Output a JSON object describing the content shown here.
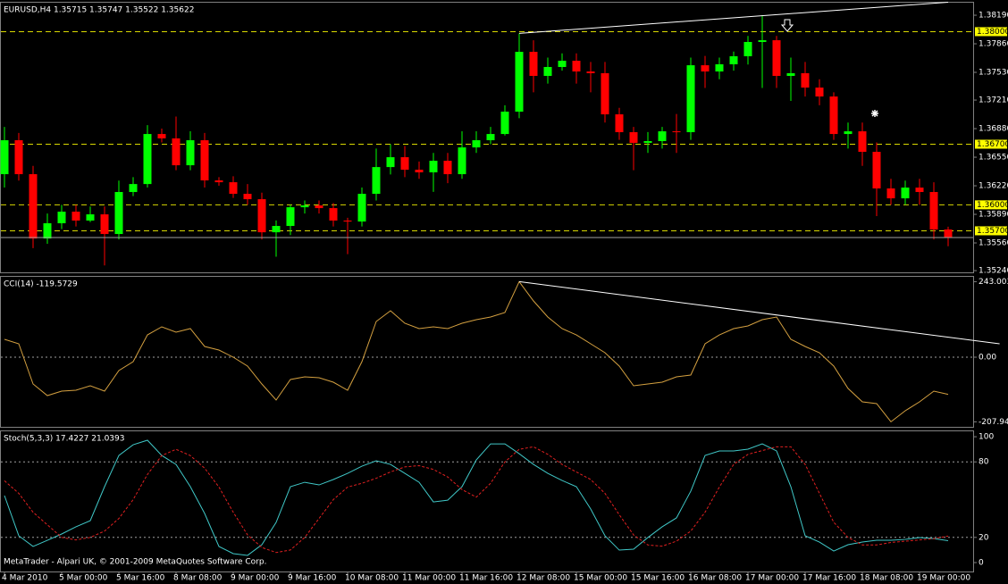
{
  "chart_data": [
    {
      "type": "candlestick",
      "title": "EURUSD,H4  1.35715 1.35747 1.35522 1.35622",
      "categories": [
        "4 Mar 2010",
        null,
        null,
        null,
        "5 Mar 00:00",
        null,
        null,
        null,
        "5 Mar 16:00",
        null,
        null,
        null,
        "8 Mar 08:00",
        null,
        null,
        null,
        "9 Mar 00:00",
        null,
        null,
        null,
        "9 Mar 16:00",
        null,
        null,
        null,
        "10 Mar 08:00",
        null,
        null,
        null,
        "11 Mar 00:00",
        null,
        null,
        null,
        "11 Mar 16:00",
        null,
        null,
        null,
        "12 Mar 08:00",
        null,
        null,
        null,
        "15 Mar 00:00",
        null,
        null,
        null,
        "15 Mar 16:00",
        null,
        null,
        null,
        "16 Mar 08:00",
        null,
        null,
        null,
        "17 Mar 00:00",
        null,
        null,
        null,
        "17 Mar 16:00",
        null,
        null,
        null,
        "18 Mar 08:00",
        null,
        null,
        null,
        "19 Mar 00:00",
        null,
        null
      ],
      "open": [
        1.36354,
        1.36746,
        1.36354,
        1.35611,
        1.35787,
        1.35921,
        1.35818,
        1.3589,
        1.35663,
        1.36148,
        1.3624,
        1.36818,
        1.36767,
        1.36457,
        1.36746,
        1.36282,
        1.36261,
        1.36127,
        1.36065,
        1.35683,
        1.35756,
        1.35972,
        1.35993,
        1.35962,
        1.35818,
        1.35807,
        1.36127,
        1.36436,
        1.3655,
        1.36405,
        1.36375,
        1.36509,
        1.36354,
        1.36663,
        1.36746,
        1.36818,
        1.37076,
        1.37767,
        1.37489,
        1.37592,
        1.37664,
        1.3754,
        1.3752,
        1.37045,
        1.36839,
        1.36715,
        1.36736,
        1.36849,
        1.36839,
        1.37612,
        1.3754,
        1.37623,
        1.37716,
        1.37881,
        1.37901,
        1.37489,
        1.3752,
        1.37354,
        1.37251,
        1.36818,
        1.36849,
        1.36612,
        1.36189,
        1.36075,
        1.36199,
        1.36148,
        1.35715
      ],
      "high": [
        1.369,
        1.3683,
        1.3645,
        1.359,
        1.36,
        1.36,
        1.3598,
        1.3598,
        1.3628,
        1.3632,
        1.3692,
        1.3688,
        1.3702,
        1.3685,
        1.3683,
        1.3632,
        1.3633,
        1.3624,
        1.3614,
        1.3582,
        1.36,
        1.3605,
        1.3605,
        1.3602,
        1.3585,
        1.362,
        1.3665,
        1.367,
        1.3668,
        1.365,
        1.366,
        1.366,
        1.3685,
        1.3685,
        1.369,
        1.3715,
        1.3798,
        1.379,
        1.377,
        1.3775,
        1.3775,
        1.3765,
        1.3765,
        1.3712,
        1.369,
        1.3684,
        1.369,
        1.3705,
        1.377,
        1.3772,
        1.377,
        1.3777,
        1.3795,
        1.3819,
        1.3795,
        1.377,
        1.3765,
        1.3745,
        1.373,
        1.3695,
        1.3695,
        1.3672,
        1.363,
        1.3628,
        1.363,
        1.3626,
        1.35747
      ],
      "low": [
        1.362,
        1.3628,
        1.355,
        1.3555,
        1.3572,
        1.3575,
        1.358,
        1.353,
        1.356,
        1.361,
        1.362,
        1.3672,
        1.364,
        1.364,
        1.362,
        1.3622,
        1.3608,
        1.36,
        1.356,
        1.354,
        1.3565,
        1.359,
        1.359,
        1.3575,
        1.3543,
        1.3575,
        1.3605,
        1.3635,
        1.3632,
        1.363,
        1.3615,
        1.3625,
        1.363,
        1.366,
        1.367,
        1.368,
        1.37,
        1.373,
        1.374,
        1.3755,
        1.374,
        1.373,
        1.3695,
        1.3675,
        1.364,
        1.366,
        1.3665,
        1.366,
        1.3675,
        1.3735,
        1.3745,
        1.3755,
        1.3762,
        1.3735,
        1.3735,
        1.372,
        1.3725,
        1.3715,
        1.3675,
        1.3665,
        1.3645,
        1.3587,
        1.36,
        1.36,
        1.36,
        1.356,
        1.35522
      ],
      "close": [
        1.36746,
        1.36354,
        1.35611,
        1.35787,
        1.35921,
        1.35818,
        1.3589,
        1.35663,
        1.36148,
        1.3624,
        1.36818,
        1.36767,
        1.36457,
        1.36746,
        1.36282,
        1.36261,
        1.36127,
        1.36065,
        1.35683,
        1.35756,
        1.35972,
        1.35993,
        1.35962,
        1.35818,
        1.35807,
        1.36127,
        1.36436,
        1.3655,
        1.36405,
        1.36375,
        1.36509,
        1.36354,
        1.36663,
        1.36746,
        1.36818,
        1.37076,
        1.37767,
        1.37489,
        1.37592,
        1.37664,
        1.3754,
        1.3752,
        1.37045,
        1.36839,
        1.36715,
        1.36736,
        1.36849,
        1.36839,
        1.37612,
        1.3754,
        1.37623,
        1.37716,
        1.37881,
        1.37901,
        1.37489,
        1.3752,
        1.37354,
        1.37251,
        1.36818,
        1.36849,
        1.36612,
        1.36189,
        1.36075,
        1.36199,
        1.36148,
        1.35715,
        1.35622
      ],
      "up_color": "#00ff00",
      "down_color": "#ff0000",
      "ylim": [
        1.3522,
        1.38345
      ],
      "yticks": [
        {
          "value": 1.3819,
          "label": "1.38190"
        },
        {
          "value": 1.3786,
          "label": "1.37860"
        },
        {
          "value": 1.3753,
          "label": "1.37530"
        },
        {
          "value": 1.3721,
          "label": "1.37210"
        },
        {
          "value": 1.3688,
          "label": "1.36880"
        },
        {
          "value": 1.3655,
          "label": "1.36550"
        },
        {
          "value": 1.3622,
          "label": "1.36220"
        },
        {
          "value": 1.3589,
          "label": "1.35890"
        },
        {
          "value": 1.3556,
          "label": "1.35560"
        },
        {
          "value": 1.3524,
          "label": "1.35240"
        }
      ],
      "levels": [
        {
          "value": 1.38,
          "label": "1.38000"
        },
        {
          "value": 1.367,
          "label": "1.36700"
        },
        {
          "value": 1.36,
          "label": "1.36000"
        },
        {
          "value": 1.357,
          "label": "1.35700"
        }
      ],
      "level_color": "#d8d800",
      "trendline": {
        "x": [
          36,
          66
        ],
        "values": [
          1.3798,
          1.3834
        ]
      }
    },
    {
      "type": "line",
      "title": "CCI(14) -119.5729",
      "color": "#d4a040",
      "values": [
        57.5,
        43.1,
        -86.2,
        -123.6,
        -109.2,
        -106.3,
        -92.0,
        -109.2,
        -43.1,
        -14.4,
        71.8,
        97.7,
        80.5,
        92.0,
        34.5,
        23.0,
        0,
        -28.7,
        -86.2,
        -137.9,
        -71.8,
        -63.2,
        -66.1,
        -80.5,
        -106.3,
        -14.4,
        114.9,
        149.4,
        109.2,
        92.0,
        97.7,
        92.0,
        109.2,
        120.7,
        129.3,
        143.7,
        243.0,
        181.0,
        129.3,
        92.0,
        71.8,
        43.1,
        14.4,
        -28.7,
        -92.0,
        -86.2,
        -80.5,
        -63.2,
        -57.5,
        43.1,
        71.8,
        92.0,
        100.6,
        120.7,
        129.3,
        57.5,
        34.5,
        14.4,
        -28.7,
        -100.6,
        -143.7,
        -149.4,
        -207.9,
        -172.4,
        -143.7,
        -109.2,
        -119.57
      ],
      "ylim": [
        -224.1,
        258.6
      ],
      "yticks": [
        243.0032,
        {
          "value": 0,
          "label": "0.00"
        },
        -207.945
      ],
      "levels": [
        0
      ],
      "level_color": "#a0a0a0",
      "trendline": {
        "x": [
          36,
          69.6
        ],
        "values": [
          243.0,
          43
        ]
      }
    },
    {
      "type": "line",
      "title": "Stoch(5,3,3) 17.4227 21.0393",
      "series": [
        {
          "color": "#40c8c8",
          "style": "solid",
          "values": [
            53.2,
            21.3,
            12.8,
            17.7,
            22.7,
            28.4,
            33.3,
            60.3,
            85.1,
            93.6,
            97.2,
            85.1,
            78.0,
            60.3,
            39.0,
            12.8,
            7.1,
            5.7,
            14.2,
            31.9,
            60.3,
            63.8,
            61.7,
            66.0,
            70.9,
            76.6,
            80.9,
            78.0,
            70.9,
            63.8,
            48.2,
            49.6,
            60.3,
            81.6,
            94.3,
            94.3,
            86.5,
            78.0,
            70.9,
            65.2,
            60.3,
            42.6,
            21.3,
            9.9,
            10.6,
            19.9,
            28.4,
            35.5,
            56.7,
            85.1,
            88.7,
            88.7,
            90.1,
            94.3,
            88.7,
            60.3,
            21.3,
            16.3,
            9.2,
            14.2,
            16.3,
            17.7,
            17.7,
            18.4,
            19.9,
            19.1,
            17.42
          ]
        },
        {
          "color": "#e02020",
          "style": "dashed",
          "values": [
            65,
            55,
            40,
            30,
            20,
            18,
            20,
            25,
            35,
            50,
            70,
            85,
            90,
            85,
            75,
            60,
            40,
            22,
            12,
            8,
            10,
            20,
            35,
            50,
            60,
            63,
            67,
            72,
            76,
            77,
            74,
            68,
            58,
            52,
            63,
            80,
            90,
            92,
            86,
            78,
            72,
            66,
            55,
            38,
            22,
            14,
            13,
            17,
            25,
            40,
            60,
            78,
            86,
            89,
            92,
            92,
            78,
            55,
            32,
            20,
            14,
            14,
            16,
            17,
            18,
            19,
            21.04
          ]
        }
      ],
      "ylim": [
        -7.1,
        104.3
      ],
      "yticks": [
        100,
        80,
        20,
        0
      ],
      "levels": [
        80,
        20
      ],
      "level_color": "#a0a0a0"
    }
  ],
  "footer": "MetaTrader - Alpari UK, © 2001-2009 MetaQuotes Software Corp."
}
